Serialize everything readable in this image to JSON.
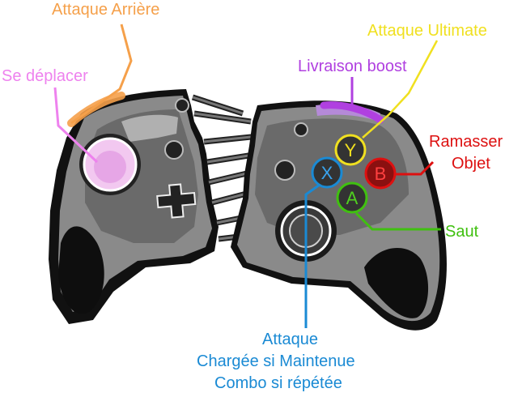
{
  "labels": {
    "attaque_arriere": "Attaque Arrière",
    "se_deplacer": "Se déplacer",
    "livraison_boost": "Livraison boost",
    "attaque_ultimate": "Attaque Ultimate",
    "ramasser_l1": "Ramasser",
    "ramasser_l2": "Objet",
    "saut": "Saut",
    "attaque_l1": "Attaque",
    "attaque_l2": "Chargée si Maintenue",
    "attaque_l3": "Combo si répétée"
  },
  "buttons": {
    "y": "Y",
    "b": "B",
    "x": "X",
    "a": "A"
  },
  "colors": {
    "orange": "#f5a04a",
    "pink": "#ee82ee",
    "purple": "#b040e0",
    "yellow": "#f0e020",
    "red": "#dd1010",
    "green": "#40c010",
    "blue": "#1a8ad4",
    "body_gray": "#8a8a8a",
    "outline": "#111111"
  }
}
